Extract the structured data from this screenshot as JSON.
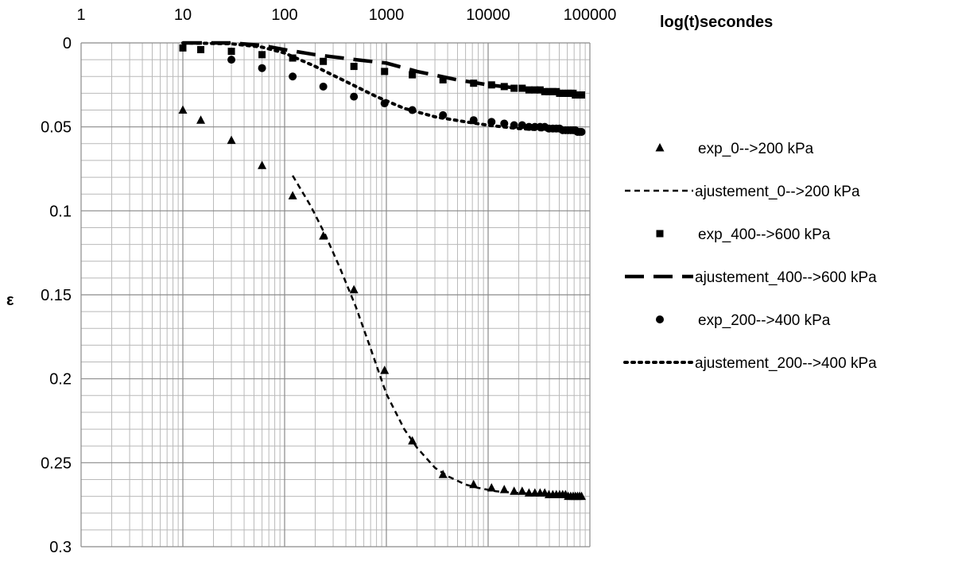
{
  "chart_data": {
    "type": "scatter",
    "title": "",
    "xlabel": "log(t)secondes",
    "ylabel": "ε",
    "x_scale": "log",
    "xlim": [
      1,
      100000
    ],
    "ylim": [
      0,
      0.3
    ],
    "y_reversed": true,
    "grid": true,
    "legend_position": "right",
    "x_ticks": [
      "1",
      "10",
      "100",
      "1000",
      "10000",
      "100000"
    ],
    "y_ticks": [
      "0",
      "0.05",
      "0.1",
      "0.15",
      "0.2",
      "0.25",
      "0.3"
    ],
    "series": [
      {
        "name": "exp_0-->200 kPa",
        "kind": "markers",
        "marker": "triangle",
        "x": [
          10,
          15,
          30,
          60,
          120,
          240,
          480,
          960,
          1800,
          3600,
          7200,
          10800,
          14400,
          18000,
          21600,
          25200,
          28800,
          32400,
          36000,
          39600,
          43200,
          46800,
          50400,
          54000,
          57600,
          61200,
          64800,
          68400,
          72000,
          75600,
          79200,
          82800
        ],
        "y": [
          0.04,
          0.046,
          0.058,
          0.073,
          0.091,
          0.115,
          0.147,
          0.195,
          0.237,
          0.257,
          0.263,
          0.265,
          0.266,
          0.267,
          0.267,
          0.268,
          0.268,
          0.268,
          0.268,
          0.269,
          0.269,
          0.269,
          0.269,
          0.269,
          0.269,
          0.27,
          0.27,
          0.27,
          0.27,
          0.27,
          0.27,
          0.27
        ]
      },
      {
        "name": "ajustement_0-->200 kPa",
        "kind": "line",
        "dash": "short",
        "x": [
          120,
          180,
          250,
          350,
          500,
          700,
          1000,
          1500,
          2000,
          3000,
          4000,
          6000,
          8000,
          12000,
          20000,
          40000,
          85000
        ],
        "y": [
          0.079,
          0.097,
          0.114,
          0.134,
          0.157,
          0.182,
          0.209,
          0.23,
          0.241,
          0.253,
          0.258,
          0.263,
          0.265,
          0.267,
          0.268,
          0.269,
          0.27
        ]
      },
      {
        "name": "exp_400-->600 kPa",
        "kind": "markers",
        "marker": "square",
        "x": [
          10,
          15,
          30,
          60,
          120,
          240,
          480,
          960,
          1800,
          3600,
          7200,
          10800,
          14400,
          18000,
          21600,
          25200,
          28800,
          32400,
          36000,
          39600,
          43200,
          46800,
          50400,
          54000,
          57600,
          61200,
          64800,
          68400,
          72000,
          75600,
          79200,
          82800
        ],
        "y": [
          0.003,
          0.004,
          0.005,
          0.007,
          0.009,
          0.011,
          0.014,
          0.017,
          0.019,
          0.022,
          0.024,
          0.025,
          0.026,
          0.027,
          0.027,
          0.028,
          0.028,
          0.028,
          0.029,
          0.029,
          0.029,
          0.029,
          0.03,
          0.03,
          0.03,
          0.03,
          0.03,
          0.03,
          0.031,
          0.031,
          0.031,
          0.031
        ]
      },
      {
        "name": "ajustement_400-->600 kPa",
        "kind": "line",
        "dash": "long",
        "x": [
          10,
          30,
          60,
          100,
          200,
          500,
          1000,
          2000,
          5000,
          10000,
          20000,
          50000,
          85000
        ],
        "y": [
          0,
          0,
          0.0015,
          0.004,
          0.007,
          0.01,
          0.012,
          0.017,
          0.022,
          0.025,
          0.027,
          0.03,
          0.031
        ]
      },
      {
        "name": "exp_200-->400 kPa",
        "kind": "markers",
        "marker": "circle",
        "x": [
          30,
          60,
          120,
          240,
          480,
          960,
          1800,
          3600,
          7200,
          10800,
          14400,
          18000,
          21600,
          25200,
          28800,
          32400,
          36000,
          39600,
          43200,
          46800,
          50400,
          54000,
          57600,
          61200,
          64800,
          68400,
          72000,
          75600,
          79200,
          82800
        ],
        "y": [
          0.01,
          0.015,
          0.02,
          0.026,
          0.032,
          0.036,
          0.04,
          0.043,
          0.046,
          0.047,
          0.048,
          0.049,
          0.049,
          0.05,
          0.05,
          0.05,
          0.05,
          0.051,
          0.051,
          0.051,
          0.051,
          0.052,
          0.052,
          0.052,
          0.052,
          0.052,
          0.052,
          0.053,
          0.053,
          0.053
        ]
      },
      {
        "name": "ajustement_200-->400 kPa",
        "kind": "line",
        "dash": "dotted",
        "x": [
          10,
          30,
          60,
          100,
          200,
          400,
          800,
          1500,
          3000,
          6000,
          10000,
          20000,
          40000,
          85000
        ],
        "y": [
          0,
          0.0005,
          0.0025,
          0.006,
          0.014,
          0.023,
          0.032,
          0.039,
          0.044,
          0.047,
          0.049,
          0.051,
          0.052,
          0.053
        ]
      }
    ]
  }
}
